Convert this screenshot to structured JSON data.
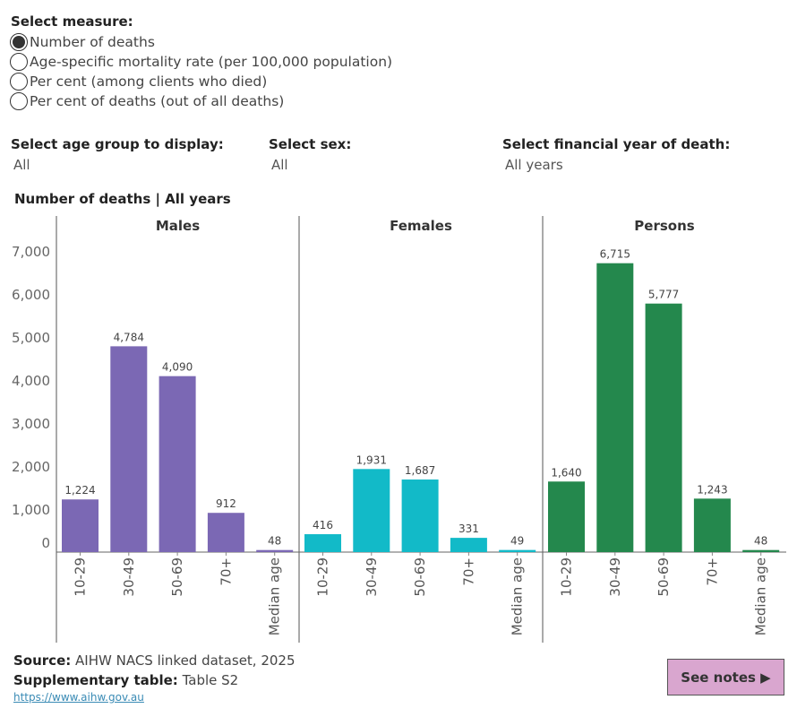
{
  "measure": {
    "title": "Select measure:",
    "options": [
      {
        "label": "Number of deaths",
        "selected": true
      },
      {
        "label": "Age-specific mortality rate (per 100,000 population)",
        "selected": false
      },
      {
        "label": "Per cent (among clients who died)",
        "selected": false
      },
      {
        "label": "Per cent of deaths (out of all deaths)",
        "selected": false
      }
    ]
  },
  "filters": {
    "age": {
      "label": "Select age group to display:",
      "value": "All"
    },
    "sex": {
      "label": "Select sex:",
      "value": "All"
    },
    "year": {
      "label": "Select financial year of death:",
      "value": "All years"
    }
  },
  "chart_title": "Number of deaths | All years",
  "chart_data": {
    "type": "bar",
    "categories": [
      "10-29",
      "30-49",
      "50-69",
      "70+",
      "Median age"
    ],
    "ylim": [
      0,
      7000
    ],
    "yticks": [
      0,
      1000,
      2000,
      3000,
      4000,
      5000,
      6000,
      7000
    ],
    "ytick_labels": [
      "0",
      "1,000",
      "2,000",
      "3,000",
      "4,000",
      "5,000",
      "6,000",
      "7,000"
    ],
    "grid": false,
    "panels": [
      {
        "name": "Males",
        "color": "#7b68b4",
        "values": [
          1224,
          4784,
          4090,
          912,
          48
        ],
        "labels": [
          "1,224",
          "4,784",
          "4,090",
          "912",
          "48"
        ]
      },
      {
        "name": "Females",
        "color": "#12bac8",
        "values": [
          416,
          1931,
          1687,
          331,
          49
        ],
        "labels": [
          "416",
          "1,931",
          "1,687",
          "331",
          "49"
        ]
      },
      {
        "name": "Persons",
        "color": "#24884d",
        "values": [
          1640,
          6715,
          5777,
          1243,
          48
        ],
        "labels": [
          "1,640",
          "6,715",
          "5,777",
          "1,243",
          "48"
        ]
      }
    ]
  },
  "footer": {
    "source_label": "Source:",
    "source_value": "AIHW NACS linked dataset, 2025",
    "supp_label": "Supplementary table:",
    "supp_value": "Table S2",
    "link": "https://www.aihw.gov.au",
    "notes_button": "See notes ▶"
  }
}
